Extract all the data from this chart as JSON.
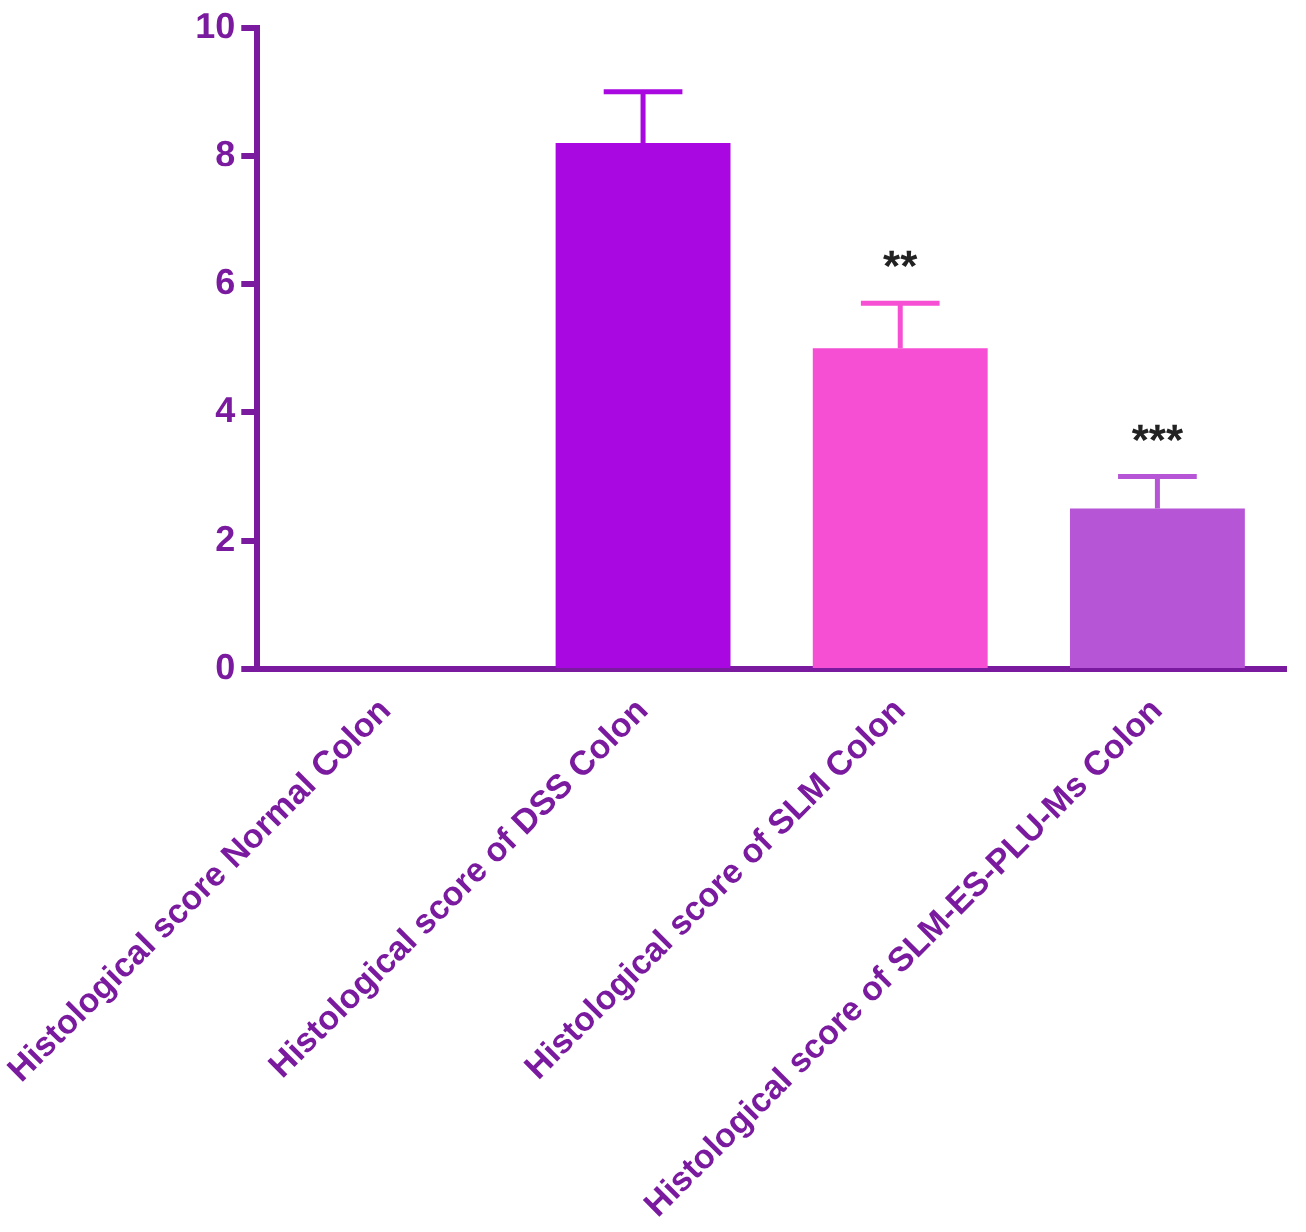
{
  "chart_data": {
    "type": "bar",
    "categories": [
      "Histological score Normal Colon",
      "Histological score of DSS Colon",
      "Histological score of SLM Colon",
      "Histological score of SLM-ES-PLU-Ms Colon"
    ],
    "values": [
      0,
      8.2,
      5.0,
      2.5
    ],
    "colors": [
      "#a010d8",
      "#a908e0",
      "#f74fd4",
      "#b655d6"
    ],
    "errors": [
      null,
      [
        8.2,
        9.0
      ],
      [
        5.0,
        5.7
      ],
      [
        2.5,
        3.0
      ]
    ],
    "ylim": [
      0,
      10
    ],
    "yticks": [
      0,
      2,
      4,
      6,
      8,
      10
    ],
    "grid": false,
    "legend": false,
    "annotations": [
      {
        "text": "**",
        "x": "Histological score of SLM Colon",
        "y": 5.7
      },
      {
        "text": "***",
        "x": "Histological score of SLM-ES-PLU-Ms Colon",
        "y": 3.0
      }
    ]
  }
}
